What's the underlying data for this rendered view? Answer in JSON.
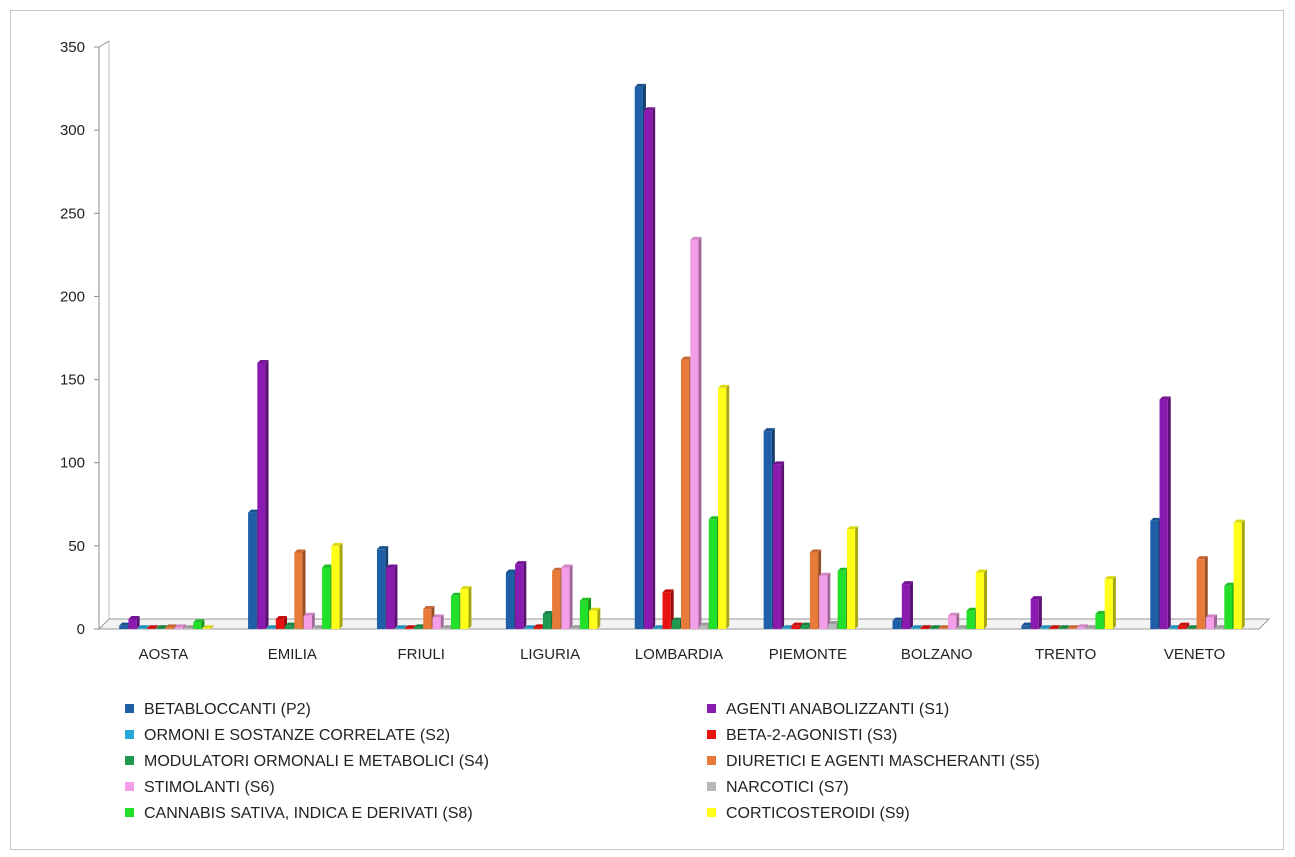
{
  "chart_data": {
    "type": "bar",
    "categories": [
      "AOSTA",
      "EMILIA",
      "FRIULI",
      "LIGURIA",
      "LOMBARDIA",
      "PIEMONTE",
      "BOLZANO",
      "TRENTO",
      "VENETO"
    ],
    "ylim": [
      0,
      350
    ],
    "yticks": [
      0,
      50,
      100,
      150,
      200,
      250,
      300,
      350
    ],
    "grid": false,
    "legend_position": "bottom",
    "series": [
      {
        "name": "BETABLOCCANTI (P2)",
        "color": "#1f5fa8",
        "values": [
          2,
          70,
          48,
          34,
          326,
          119,
          5,
          2,
          65
        ]
      },
      {
        "name": "AGENTI ANABOLIZZANTI (S1)",
        "color": "#8a1ab0",
        "values": [
          6,
          160,
          37,
          39,
          312,
          99,
          27,
          18,
          138
        ]
      },
      {
        "name": "ORMONI E SOSTANZE CORRELATE (S2)",
        "color": "#29a9d8",
        "values": [
          0,
          0,
          0,
          0,
          0,
          0,
          0,
          0,
          0
        ]
      },
      {
        "name": "BETA-2-AGONISTI (S3)",
        "color": "#e8120f",
        "values": [
          0,
          6,
          0,
          1,
          22,
          2,
          0,
          0,
          2
        ]
      },
      {
        "name": "MODULATORI ORMONALI E METABOLICI (S4)",
        "color": "#1e9a4e",
        "values": [
          0,
          2,
          1,
          9,
          5,
          2,
          0,
          0,
          0
        ]
      },
      {
        "name": "DIURETICI E AGENTI MASCHERANTI (S5)",
        "color": "#e87a3a",
        "values": [
          1,
          46,
          12,
          35,
          162,
          46,
          0,
          0,
          42
        ]
      },
      {
        "name": "STIMOLANTI (S6)",
        "color": "#f59ee8",
        "values": [
          1,
          8,
          7,
          37,
          234,
          32,
          8,
          1,
          7
        ]
      },
      {
        "name": "NARCOTICI (S7)",
        "color": "#b8b8b8",
        "values": [
          0,
          0,
          0,
          0,
          2,
          3,
          0,
          0,
          0
        ]
      },
      {
        "name": "CANNABIS SATIVA, INDICA E DERIVATI (S8)",
        "color": "#22e02a",
        "values": [
          4,
          37,
          20,
          17,
          66,
          35,
          11,
          9,
          26
        ]
      },
      {
        "name": "CORTICOSTEROIDI (S9)",
        "color": "#ffff1a",
        "values": [
          0,
          50,
          24,
          11,
          145,
          60,
          34,
          30,
          64
        ]
      }
    ]
  }
}
